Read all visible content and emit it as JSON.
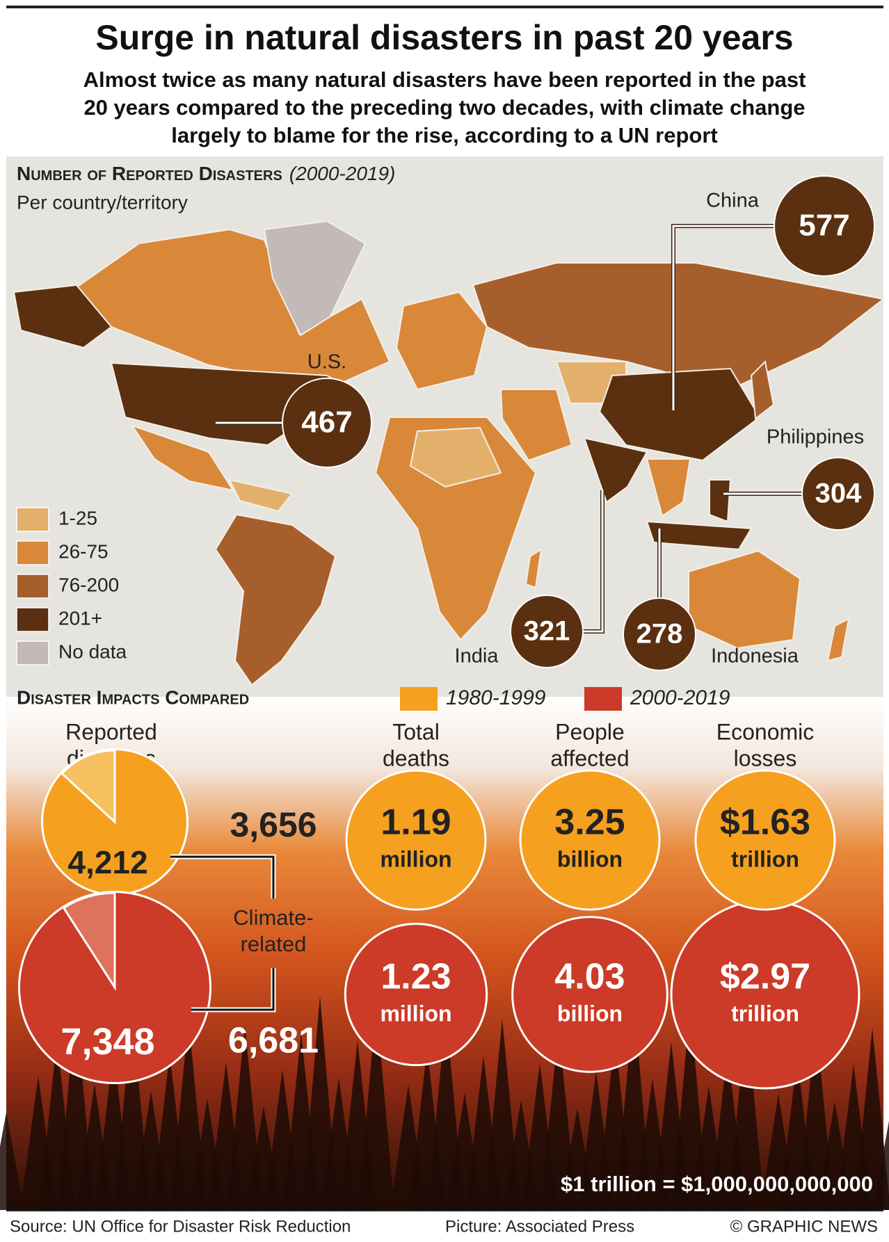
{
  "header": {
    "title": "Surge in natural disasters in past 20 years",
    "subtitle": [
      "Almost twice as many natural disasters have been reported in the past",
      "20 years compared to the preceding two decades, with climate change",
      "largely to blame for the rise, according to a UN report"
    ]
  },
  "map": {
    "heading": "Number of Reported Disasters",
    "period": "(2000-2019)",
    "subheading": "Per country/territory",
    "legend": [
      {
        "label": "1-25",
        "color": "#e3b06c"
      },
      {
        "label": "26-75",
        "color": "#d9883a"
      },
      {
        "label": "76-200",
        "color": "#a65f2c"
      },
      {
        "label": "201+",
        "color": "#5a3010"
      },
      {
        "label": "No data",
        "color": "#c2b9b8"
      }
    ],
    "callouts": [
      {
        "label": "U.S.",
        "value": 467
      },
      {
        "label": "China",
        "value": 577
      },
      {
        "label": "Philippines",
        "value": 304
      },
      {
        "label": "India",
        "value": 321
      },
      {
        "label": "Indonesia",
        "value": 278
      }
    ]
  },
  "impacts": {
    "heading": "Disaster Impacts Compared",
    "legend": [
      {
        "label": "1980-1999",
        "color": "#f5a01e"
      },
      {
        "label": "2000-2019",
        "color": "#cc3a28"
      }
    ],
    "reported": {
      "label": [
        "Reported",
        "disasters"
      ],
      "climate_label": [
        "Climate-",
        "related"
      ],
      "periods": [
        {
          "total": {
            "value": 4212,
            "label": "4,212"
          },
          "climate": {
            "value": 3656,
            "label": "3,656"
          }
        },
        {
          "total": {
            "value": 7348,
            "label": "7,348"
          },
          "climate": {
            "value": 6681,
            "label": "6,681"
          }
        }
      ]
    },
    "metrics": [
      {
        "label": [
          "Total",
          "deaths"
        ],
        "unit": "million",
        "values": [
          {
            "value": 1.19,
            "label": "1.19"
          },
          {
            "value": 1.23,
            "label": "1.23"
          }
        ]
      },
      {
        "label": [
          "People",
          "affected"
        ],
        "unit": "billion",
        "values": [
          {
            "value": 3.25,
            "label": "3.25"
          },
          {
            "value": 4.03,
            "label": "4.03"
          }
        ]
      },
      {
        "label": [
          "Economic",
          "losses"
        ],
        "unit": "trillion",
        "values": [
          {
            "value": 1.63,
            "label": "$1.63"
          },
          {
            "value": 2.97,
            "label": "$2.97"
          }
        ]
      }
    ],
    "note": "$1 trillion = $1,000,000,000,000"
  },
  "footer": {
    "source": "Source: UN Office for Disaster Risk Reduction",
    "credit": "Picture: Associated Press",
    "copyright": "© GRAPHIC NEWS"
  }
}
